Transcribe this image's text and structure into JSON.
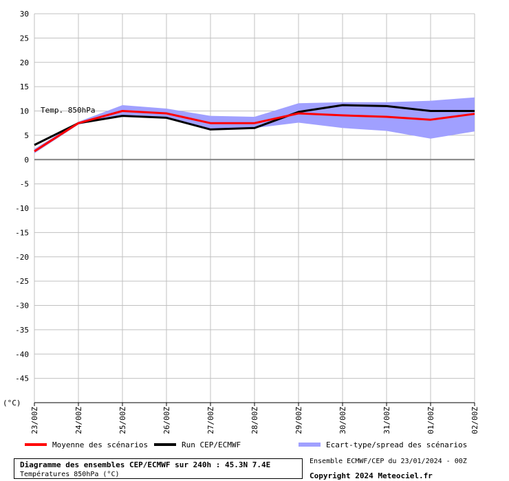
{
  "chart_data": {
    "type": "line",
    "series_label": "Temp. 850hPa",
    "unit_label": "(°C)",
    "x": [
      "23/00Z",
      "24/00Z",
      "25/00Z",
      "26/00Z",
      "27/00Z",
      "28/00Z",
      "29/00Z",
      "30/00Z",
      "31/00Z",
      "01/00Z",
      "02/00Z"
    ],
    "y_ticks": [
      30,
      25,
      20,
      15,
      10,
      5,
      0,
      -5,
      -10,
      -15,
      -20,
      -25,
      -30,
      -35,
      -40,
      -45
    ],
    "ylim": [
      -50,
      30
    ],
    "grid": true,
    "series": [
      {
        "name": "Moyenne des scénarios",
        "color": "#ff0000",
        "values": [
          1.7,
          7.5,
          10.0,
          9.5,
          7.5,
          7.5,
          9.5,
          9.1,
          8.8,
          8.2,
          9.4
        ]
      },
      {
        "name": "Run CEP/ECMWF",
        "color": "#000000",
        "values": [
          3.0,
          7.5,
          9.0,
          8.6,
          6.2,
          6.5,
          9.8,
          11.2,
          11.0,
          10.0,
          10.0
        ]
      },
      {
        "name": "Ecart-type/spread des scénarios",
        "color": "#a0a0ff",
        "upper": [
          2.2,
          7.8,
          11.2,
          10.5,
          9.0,
          8.8,
          11.6,
          11.8,
          11.8,
          12.1,
          12.8
        ],
        "lower": [
          1.3,
          7.2,
          9.1,
          8.4,
          6.3,
          6.5,
          7.6,
          6.5,
          5.9,
          4.3,
          5.8
        ]
      }
    ]
  },
  "legend": {
    "mean": "Moyenne des scénarios",
    "run": "Run CEP/ECMWF",
    "spread": "Ecart-type/spread des scénarios"
  },
  "footer": {
    "title": "Diagramme des ensembles CEP/ECMWF sur 240h : 45.3N 7.4E",
    "subtitle": "Températures 850hPa (°C)",
    "run_info": "Ensemble ECMWF/CEP du 23/01/2024 - 00Z",
    "copyright": "Copyright 2024 Meteociel.fr"
  },
  "colors": {
    "mean": "#ff0000",
    "run": "#000000",
    "spread": "#a0a0ff",
    "grid": "#c0c0c0",
    "zero_line": "#808080"
  }
}
